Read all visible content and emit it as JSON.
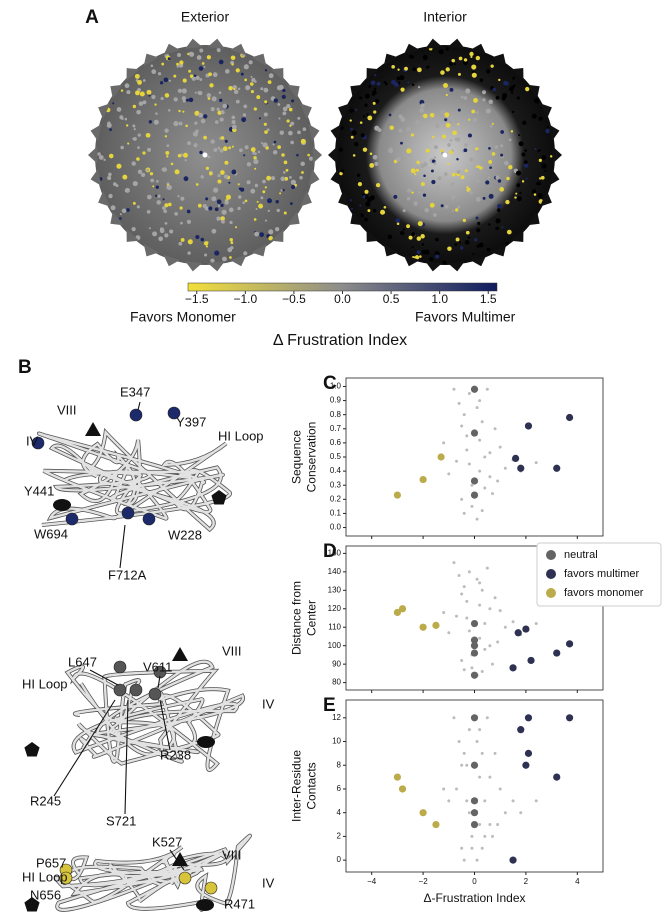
{
  "panel_a": {
    "label": "A",
    "exterior_title": "Exterior",
    "interior_title": "Interior",
    "colorbar": {
      "lim": [
        -1.59,
        1.59
      ],
      "colors": [
        "#f2df3a",
        "#8c8c8c",
        "#0e1b5e"
      ],
      "ticks": [
        {
          "value": -1.5,
          "label": "−1.5"
        },
        {
          "value": -1.0,
          "label": "−1.0"
        },
        {
          "value": -0.5,
          "label": "−0.5"
        },
        {
          "value": 0.0,
          "label": "0.0"
        },
        0.5,
        {
          "value": 1.0,
          "label": "1.0"
        },
        1.5
      ]
    },
    "left_label": "Favors Monomer",
    "right_label": "Favors Multimer",
    "title": "Δ Frustration Index"
  },
  "panel_b": {
    "label": "B",
    "structures": [
      {
        "labels": [
          "VIII",
          "E347",
          "Y397",
          "HI Loop",
          "IV",
          "Y441",
          "W694",
          "W228",
          "F712A"
        ]
      },
      {
        "labels": [
          "L647",
          "V611",
          "VIII",
          "HI Loop",
          "IV",
          "R238",
          "R245",
          "S721"
        ]
      },
      {
        "labels": [
          "VIII",
          "K527",
          "HI Loop",
          "P657",
          "N656",
          "IV",
          "R471"
        ]
      }
    ]
  },
  "chart_data": [
    {
      "type": "scatter",
      "label": "C",
      "ylabel": [
        "Sequence",
        "Conservation"
      ],
      "xlim": [
        -5,
        5
      ],
      "xticks": [
        -4,
        -2,
        0,
        2,
        4
      ],
      "ylim": [
        -0.06,
        1.06
      ],
      "yticks": [
        {
          "value": 0.0,
          "label": "0.0"
        },
        0.1,
        0.2,
        0.3,
        0.4,
        0.5,
        0.6,
        0.7,
        0.8,
        0.9,
        {
          "value": 1.0,
          "label": "1.0"
        }
      ],
      "series": [
        {
          "color": "#bcbcbc",
          "x": [
            -1.2,
            -0.8,
            -0.6,
            -0.5,
            -0.4,
            -0.3,
            -0.2,
            -0.2,
            -0.1,
            0.1,
            0.2,
            0.2,
            0.3,
            0.4,
            0.5,
            0.6,
            0.8,
            1.0,
            1.2,
            1.5,
            -0.5,
            0.4,
            -0.3,
            0.3,
            0.7,
            -0.7,
            0.1,
            -0.1,
            0.9,
            2.4,
            1.8,
            -1.0,
            0.2,
            -0.4,
            0.6
          ],
          "y": [
            0.6,
            0.98,
            0.88,
            0.72,
            0.8,
            0.55,
            0.45,
            0.95,
            0.3,
            0.85,
            0.62,
            0.4,
            0.12,
            0.5,
            0.98,
            0.36,
            0.7,
            0.57,
            0.42,
            0.48,
            0.2,
            0.28,
            0.65,
            0.75,
            0.24,
            0.47,
            0.06,
            0.15,
            0.33,
            0.46,
            0.4,
            0.38,
            0.9,
            0.1,
            0.53
          ]
        },
        {
          "name": "neutral",
          "color": "#646464",
          "x": [
            0,
            0,
            0,
            0
          ],
          "y": [
            0.98,
            0.67,
            0.33,
            0.23
          ]
        },
        {
          "name": "favors multimer",
          "color": "#2e3152",
          "x": [
            3.7,
            2.1,
            1.6,
            1.8,
            3.2
          ],
          "y": [
            0.78,
            0.72,
            0.49,
            0.42,
            0.42
          ]
        },
        {
          "name": "favors monomer",
          "color": "#bcab4a",
          "x": [
            -3.0,
            -2.0,
            -1.3
          ],
          "y": [
            0.23,
            0.34,
            0.5
          ]
        }
      ]
    },
    {
      "type": "scatter",
      "label": "D",
      "ylabel": [
        "Distance from",
        "Center"
      ],
      "legend": "right",
      "xlim": [
        -5,
        5
      ],
      "xticks": [
        -4,
        -2,
        0,
        2,
        4
      ],
      "ylim": [
        76,
        154
      ],
      "yticks": [
        80,
        90,
        100,
        110,
        120,
        130,
        140,
        150
      ],
      "series": [
        {
          "color": "#bcbcbc",
          "x": [
            -1.2,
            -0.8,
            -0.6,
            -0.5,
            -0.4,
            -0.3,
            -0.2,
            -0.2,
            -0.1,
            0.1,
            0.2,
            0.2,
            0.3,
            0.4,
            0.5,
            0.6,
            0.8,
            1.0,
            1.2,
            1.5,
            -0.5,
            0.4,
            -0.3,
            0.3,
            0.7,
            -0.7,
            0.1,
            -0.1,
            0.9,
            2.4,
            1.8,
            -1.0,
            0.2,
            -0.4,
            0.6
          ],
          "y": [
            118,
            145,
            138,
            128,
            132,
            115,
            108,
            140,
            95,
            136,
            122,
            104,
            86,
            112,
            142,
            100,
            126,
            119,
            110,
            113,
            92,
            98,
            124,
            130,
            90,
            116,
            84,
            88,
            102,
            112,
            106,
            107,
            134,
            87,
            120
          ]
        },
        {
          "name": "neutral",
          "color": "#646464",
          "x": [
            0,
            0,
            0,
            0,
            0
          ],
          "y": [
            112,
            103,
            100,
            96,
            84
          ]
        },
        {
          "name": "favors multimer",
          "color": "#2e3152",
          "x": [
            1.7,
            2.0,
            3.7,
            3.2,
            2.2,
            1.5
          ],
          "y": [
            107,
            109,
            101,
            96,
            92,
            88
          ]
        },
        {
          "name": "favors monomer",
          "color": "#bcab4a",
          "x": [
            -3.0,
            -2.8,
            -2.0,
            -1.5
          ],
          "y": [
            118,
            120,
            110,
            111
          ]
        }
      ]
    },
    {
      "type": "scatter",
      "label": "E",
      "ylabel": [
        "Inter-Residue",
        "Contacts"
      ],
      "xlabel": "Δ-Frustration Index",
      "xlim": [
        -5,
        5
      ],
      "xticks": [
        {
          "value": -4,
          "label": "−4"
        },
        {
          "value": -2,
          "label": "−2"
        },
        0,
        2,
        4
      ],
      "ylim": [
        -1,
        13.5
      ],
      "yticks": [
        0,
        2,
        4,
        6,
        8,
        10,
        12
      ],
      "series": [
        {
          "color": "#bcbcbc",
          "x": [
            -1.2,
            -0.8,
            -0.6,
            -0.5,
            -0.4,
            -0.3,
            -0.2,
            -0.2,
            -0.1,
            0.1,
            0.2,
            0.2,
            0.3,
            0.4,
            0.5,
            0.6,
            0.8,
            1.0,
            1.2,
            1.5,
            -0.5,
            0.4,
            -0.3,
            0.3,
            0.7,
            -0.7,
            0.1,
            -0.1,
            0.9,
            2.4,
            1.8,
            -1.0,
            0.2,
            -0.4,
            0.6
          ],
          "y": [
            6,
            12,
            10,
            8,
            9,
            5,
            4,
            11,
            2,
            10,
            7,
            3,
            1,
            5,
            12,
            3,
            9,
            6,
            4,
            5,
            1,
            2,
            8,
            9,
            2,
            6,
            0,
            1,
            3,
            5,
            4,
            5,
            11,
            0,
            7
          ]
        },
        {
          "name": "neutral",
          "color": "#646464",
          "x": [
            0,
            0,
            0,
            0,
            0
          ],
          "y": [
            12,
            8,
            5,
            4,
            3
          ]
        },
        {
          "name": "favors multimer",
          "color": "#2e3152",
          "x": [
            3.7,
            2.1,
            1.8,
            2.1,
            2.0,
            3.2,
            1.5
          ],
          "y": [
            12,
            12,
            11,
            9,
            8,
            7,
            0
          ]
        },
        {
          "name": "favors monomer",
          "color": "#bcab4a",
          "x": [
            -3.0,
            -2.8,
            -2.0,
            -1.5
          ],
          "y": [
            7,
            6,
            4,
            3
          ]
        }
      ]
    }
  ]
}
